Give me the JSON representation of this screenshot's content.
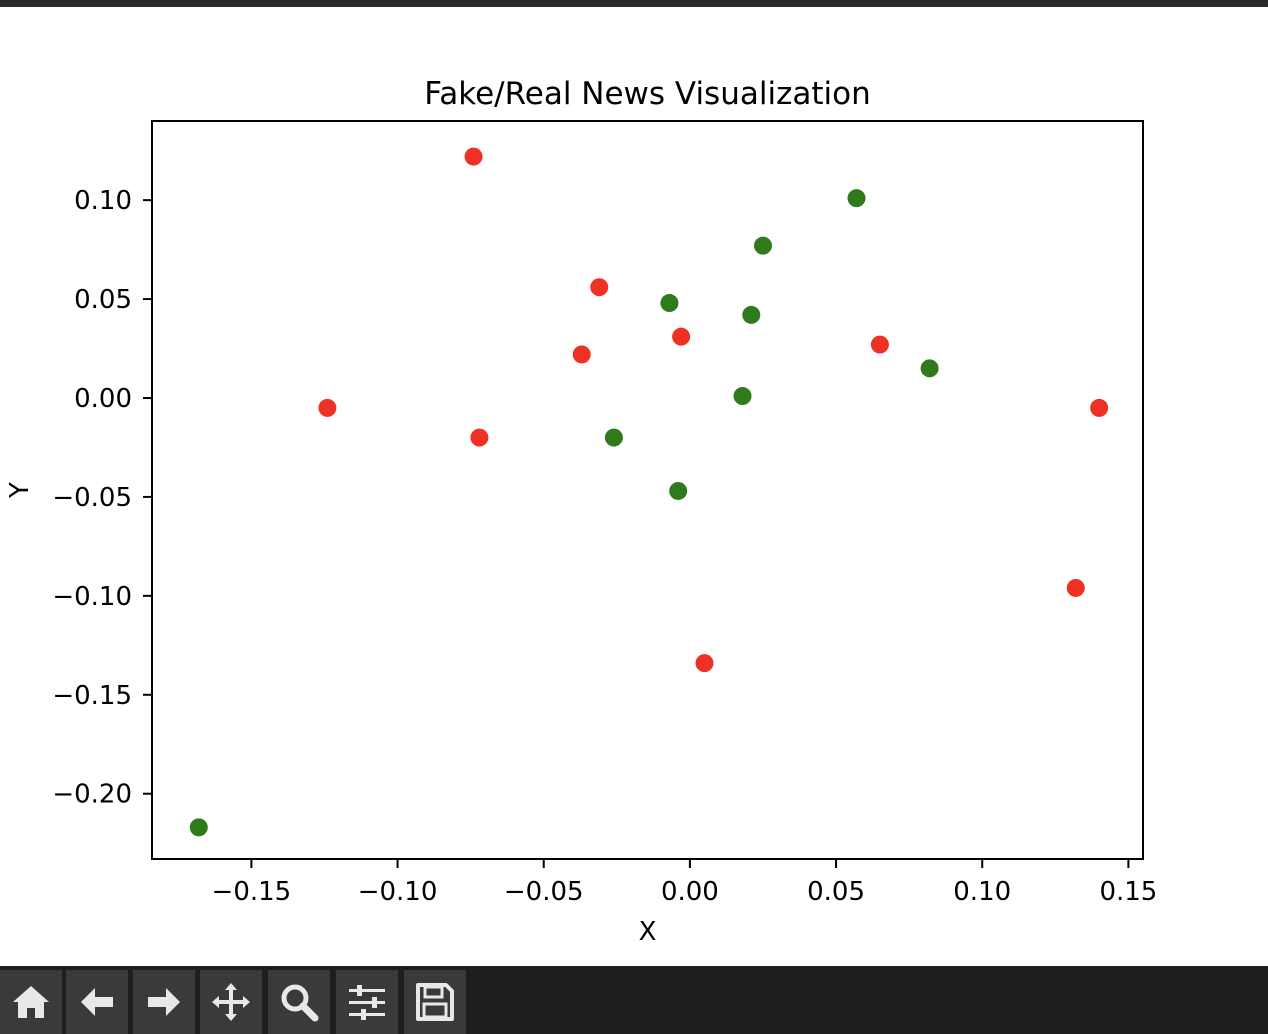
{
  "chart_data": {
    "type": "scatter",
    "title": "Fake/Real News Visualization",
    "xlabel": "X",
    "ylabel": "Y",
    "xlim": [
      -0.184,
      0.155
    ],
    "ylim": [
      -0.233,
      0.14
    ],
    "xticks": [
      -0.15,
      -0.1,
      -0.05,
      0.0,
      0.05,
      0.1,
      0.15
    ],
    "xtick_labels": [
      "−0.15",
      "−0.10",
      "−0.05",
      "0.00",
      "0.05",
      "0.10",
      "0.15"
    ],
    "yticks": [
      -0.2,
      -0.15,
      -0.1,
      -0.05,
      0.0,
      0.05,
      0.1
    ],
    "ytick_labels": [
      "−0.20",
      "−0.15",
      "−0.10",
      "−0.05",
      "0.00",
      "0.05",
      "0.10"
    ],
    "grid": false,
    "series": [
      {
        "color": "#ee3124",
        "points": [
          {
            "x": -0.074,
            "y": 0.122
          },
          {
            "x": -0.031,
            "y": 0.056
          },
          {
            "x": -0.037,
            "y": 0.022
          },
          {
            "x": -0.003,
            "y": 0.031
          },
          {
            "x": 0.065,
            "y": 0.027
          },
          {
            "x": -0.124,
            "y": -0.005
          },
          {
            "x": -0.072,
            "y": -0.02
          },
          {
            "x": 0.14,
            "y": -0.005
          },
          {
            "x": 0.132,
            "y": -0.096
          },
          {
            "x": 0.005,
            "y": -0.134
          }
        ]
      },
      {
        "color": "#2f7a1b",
        "points": [
          {
            "x": 0.057,
            "y": 0.101
          },
          {
            "x": 0.025,
            "y": 0.077
          },
          {
            "x": -0.007,
            "y": 0.048
          },
          {
            "x": 0.021,
            "y": 0.042
          },
          {
            "x": 0.082,
            "y": 0.015
          },
          {
            "x": 0.018,
            "y": 0.001
          },
          {
            "x": -0.026,
            "y": -0.02
          },
          {
            "x": -0.004,
            "y": -0.047
          },
          {
            "x": -0.168,
            "y": -0.217
          }
        ]
      }
    ]
  },
  "toolbar": {
    "buttons": [
      {
        "icon": "home-icon"
      },
      {
        "icon": "back-arrow-icon"
      },
      {
        "icon": "forward-arrow-icon"
      },
      {
        "icon": "pan-move-icon"
      },
      {
        "icon": "zoom-magnifier-icon"
      },
      {
        "icon": "configure-subplots-icon"
      },
      {
        "icon": "save-floppy-icon"
      }
    ]
  }
}
